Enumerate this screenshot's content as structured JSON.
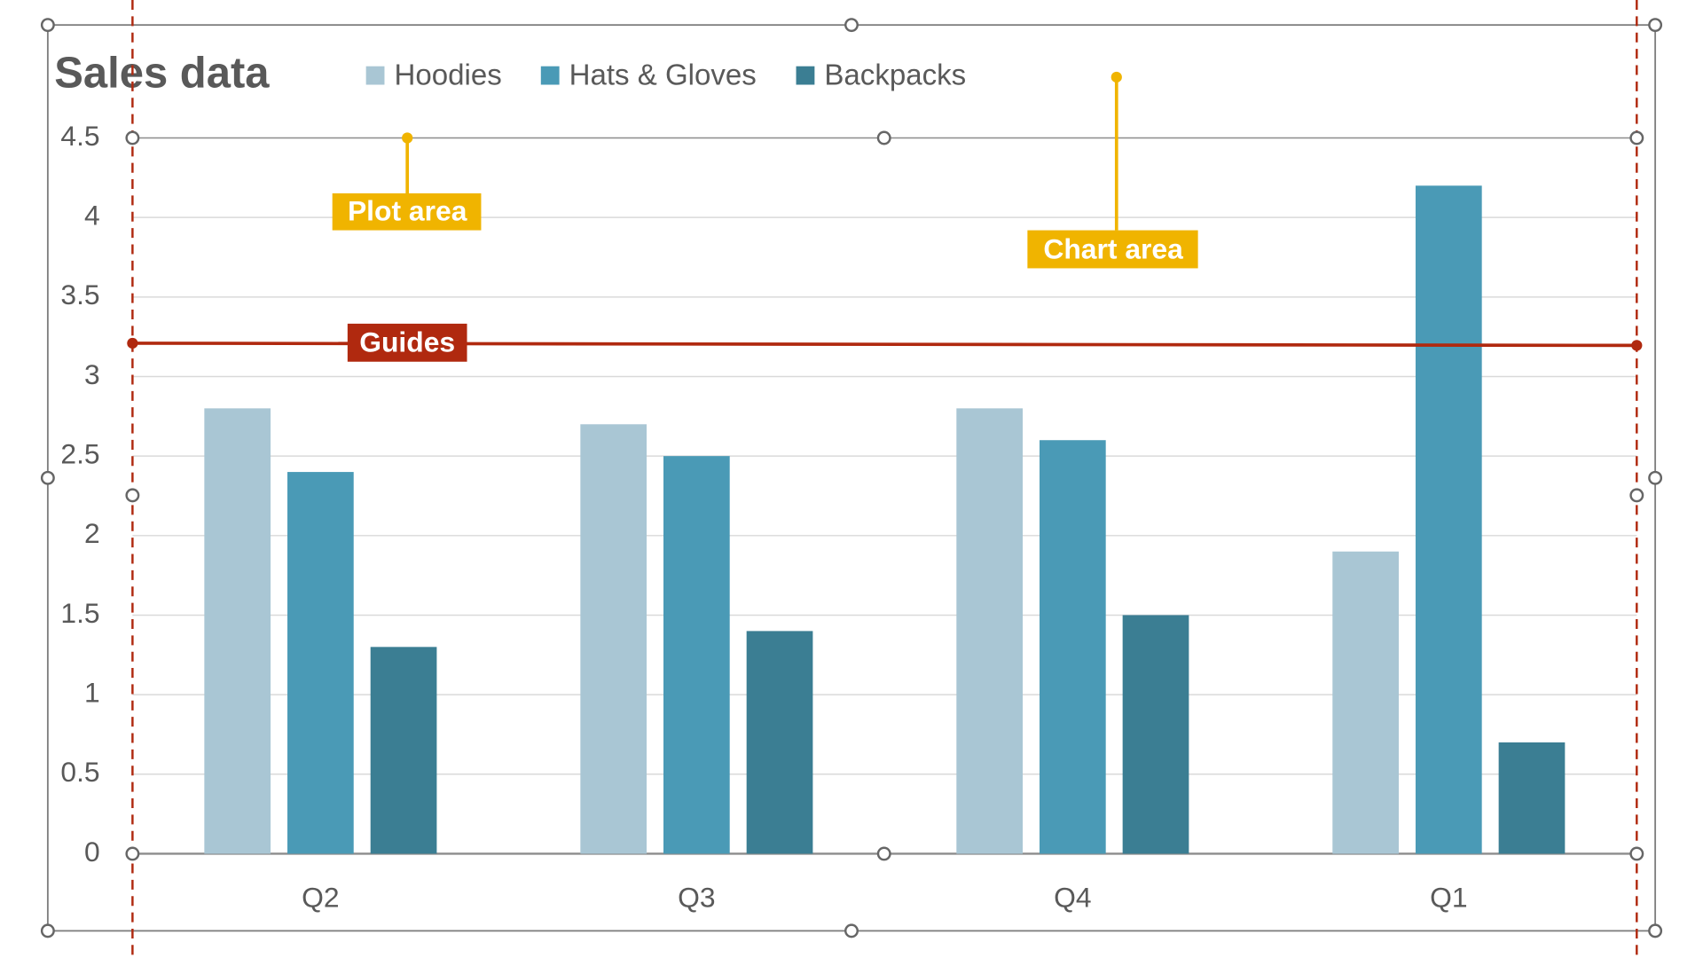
{
  "chart_data": {
    "type": "bar",
    "title": "Sales data",
    "categories": [
      "Q2",
      "Q3",
      "Q4",
      "Q1"
    ],
    "series": [
      {
        "name": "Hoodies",
        "color": "#a9c6d4",
        "values": [
          2.8,
          2.7,
          2.8,
          1.9
        ]
      },
      {
        "name": "Hats & Gloves",
        "color": "#4a9ab6",
        "values": [
          2.4,
          2.5,
          2.6,
          4.2
        ]
      },
      {
        "name": "Backpacks",
        "color": "#3b7e93",
        "values": [
          1.3,
          1.4,
          1.5,
          0.7
        ]
      }
    ],
    "ylim": [
      0,
      4.5
    ],
    "yticks": [
      0,
      0.5,
      1,
      1.5,
      2,
      2.5,
      3,
      3.5,
      4,
      4.5
    ],
    "grid": true,
    "annotations": [
      "Plot area",
      "Chart area",
      "Guides"
    ]
  }
}
